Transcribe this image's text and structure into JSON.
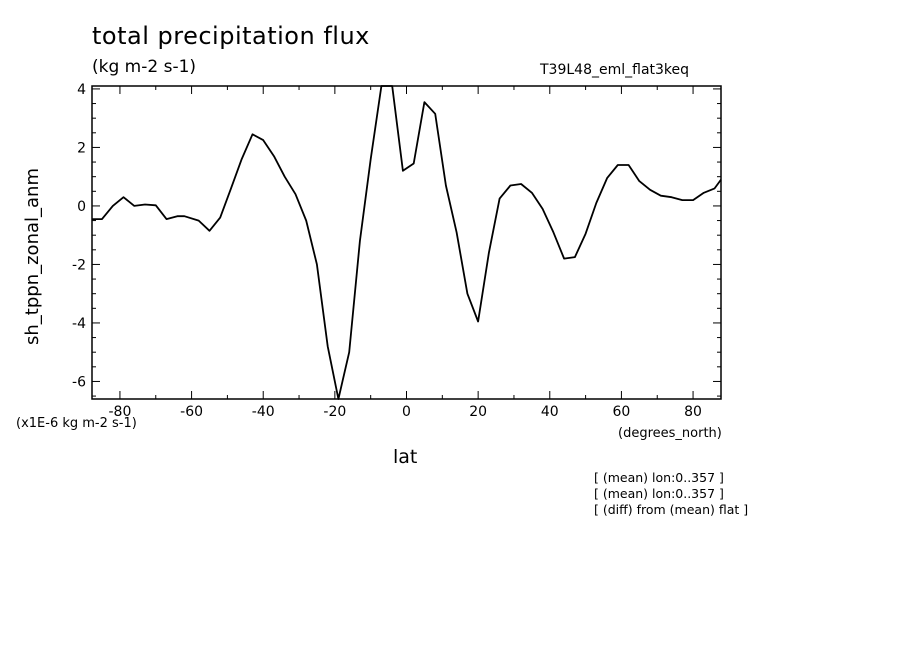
{
  "chart_data": {
    "type": "line",
    "title": "total precipitation flux",
    "units": "(kg m-2 s-1)",
    "run_id": "T39L48_eml_flat3keq",
    "xlabel": "lat",
    "x_units": "(degrees_north)",
    "ylabel": "sh_tppn_zonal_anm",
    "y_scale_note": "(x1E-6 kg m-2 s-1)",
    "xlim": [
      -87.8,
      87.8
    ],
    "ylim": [
      -6.6,
      4.1
    ],
    "xticks": [
      -80,
      -60,
      -40,
      -20,
      0,
      20,
      40,
      60,
      80
    ],
    "xtick_labels": [
      "-80",
      "-60",
      "-40",
      "-20",
      "0",
      "20",
      "40",
      "60",
      "80"
    ],
    "yticks": [
      -6,
      -4,
      -2,
      0,
      2,
      4
    ],
    "ytick_labels": [
      "-6",
      "-4",
      "-2",
      "0",
      "2",
      "4"
    ],
    "grid": false,
    "series": [
      {
        "x": [
          -87.8,
          -85,
          -82,
          -79,
          -76,
          -73,
          -70,
          -67,
          -64,
          -62,
          -58,
          -55,
          -52,
          -49,
          -46,
          -43,
          -40,
          -37,
          -34,
          -31,
          -28,
          -25,
          -22,
          -19,
          -16,
          -13,
          -10,
          -7,
          -4,
          -1,
          2,
          5,
          8,
          11,
          14,
          17,
          20,
          23,
          26,
          29,
          32,
          35,
          38,
          41,
          44,
          47,
          50,
          53,
          56,
          59,
          62,
          65,
          68,
          71,
          74,
          77,
          80,
          83,
          86,
          87.8
        ],
        "y": [
          -0.45,
          -0.45,
          0,
          0.3,
          0,
          0.05,
          0.02,
          -0.45,
          -0.35,
          -0.35,
          -0.5,
          -0.85,
          -0.4,
          0.6,
          1.6,
          2.45,
          2.25,
          1.7,
          1,
          0.4,
          -0.5,
          -2,
          -4.8,
          -6.6,
          -5,
          -1.2,
          1.6,
          4.1,
          4.1,
          1.2,
          1.45,
          3.55,
          3.15,
          0.7,
          -0.9,
          -3,
          -3.95,
          -1.6,
          0.25,
          0.7,
          0.75,
          0.45,
          -0.1,
          -0.9,
          -1.8,
          -1.75,
          -0.95,
          0.1,
          0.95,
          1.4,
          1.4,
          0.85,
          0.55,
          0.35,
          0.3,
          0.2,
          0.2,
          0.45,
          0.6,
          0.9
        ]
      }
    ]
  },
  "notes": [
    "[ (mean) lon:0..357 ]",
    "[ (mean) lon:0..357 ]",
    "[ (diff) from (mean) flat ]"
  ]
}
